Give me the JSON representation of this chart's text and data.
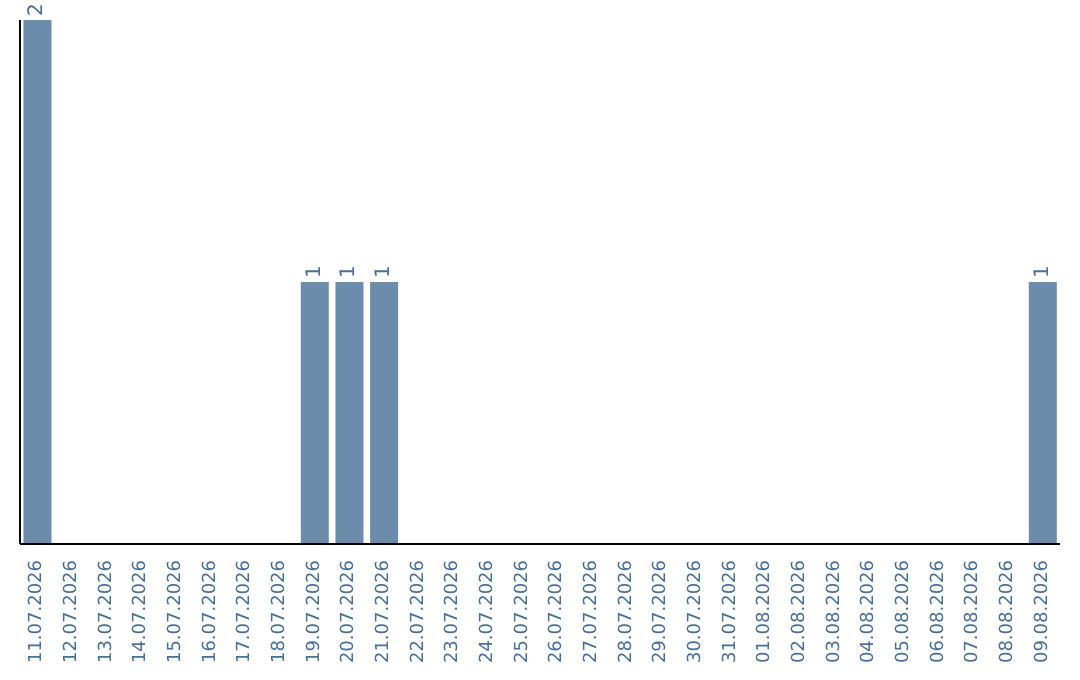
{
  "chart_data": {
    "type": "bar",
    "categories": [
      "11.07.2026",
      "12.07.2026",
      "13.07.2026",
      "14.07.2026",
      "15.07.2026",
      "16.07.2026",
      "17.07.2026",
      "18.07.2026",
      "19.07.2026",
      "20.07.2026",
      "21.07.2026",
      "22.07.2026",
      "23.07.2026",
      "24.07.2026",
      "25.07.2026",
      "26.07.2026",
      "27.07.2026",
      "28.07.2026",
      "29.07.2026",
      "30.07.2026",
      "31.07.2026",
      "01.08.2026",
      "02.08.2026",
      "03.08.2026",
      "04.08.2026",
      "05.08.2026",
      "06.08.2026",
      "07.08.2026",
      "08.08.2026",
      "09.08.2026"
    ],
    "values": [
      2,
      0,
      0,
      0,
      0,
      0,
      0,
      0,
      1,
      1,
      1,
      0,
      0,
      0,
      0,
      0,
      0,
      0,
      0,
      0,
      0,
      0,
      0,
      0,
      0,
      0,
      0,
      0,
      0,
      1
    ],
    "value_labels": [
      "2",
      null,
      null,
      null,
      null,
      null,
      null,
      null,
      "1",
      "1",
      "1",
      null,
      null,
      null,
      null,
      null,
      null,
      null,
      null,
      null,
      null,
      null,
      null,
      null,
      null,
      null,
      null,
      null,
      null,
      "1"
    ],
    "color": "#6b8cab",
    "grid": false,
    "legend": false
  }
}
